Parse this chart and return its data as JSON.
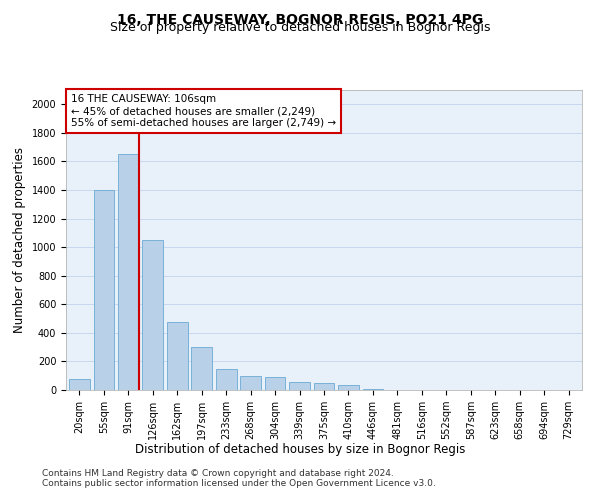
{
  "title": "16, THE CAUSEWAY, BOGNOR REGIS, PO21 4PG",
  "subtitle": "Size of property relative to detached houses in Bognor Regis",
  "xlabel": "Distribution of detached houses by size in Bognor Regis",
  "ylabel": "Number of detached properties",
  "categories": [
    "20sqm",
    "55sqm",
    "91sqm",
    "126sqm",
    "162sqm",
    "197sqm",
    "233sqm",
    "268sqm",
    "304sqm",
    "339sqm",
    "375sqm",
    "410sqm",
    "446sqm",
    "481sqm",
    "516sqm",
    "552sqm",
    "587sqm",
    "623sqm",
    "658sqm",
    "694sqm",
    "729sqm"
  ],
  "values": [
    80,
    1400,
    1650,
    1050,
    475,
    300,
    150,
    100,
    90,
    55,
    50,
    35,
    5,
    0,
    0,
    0,
    0,
    0,
    0,
    0,
    0
  ],
  "bar_color": "#b8d0e8",
  "bar_edge_color": "#6aaad4",
  "bar_width": 0.85,
  "vline_x": 2.45,
  "vline_color": "#cc0000",
  "annotation_text": "16 THE CAUSEWAY: 106sqm\n← 45% of detached houses are smaller (2,249)\n55% of semi-detached houses are larger (2,749) →",
  "annotation_box_color": "#ffffff",
  "annotation_box_edge": "#cc0000",
  "ylim": [
    0,
    2100
  ],
  "yticks": [
    0,
    200,
    400,
    600,
    800,
    1000,
    1200,
    1400,
    1600,
    1800,
    2000
  ],
  "grid_color": "#c8d8ee",
  "bg_color": "#e8f0fa",
  "footer1": "Contains HM Land Registry data © Crown copyright and database right 2024.",
  "footer2": "Contains public sector information licensed under the Open Government Licence v3.0.",
  "title_fontsize": 10,
  "subtitle_fontsize": 9,
  "axis_label_fontsize": 8.5,
  "tick_fontsize": 7,
  "annotation_fontsize": 7.5,
  "footer_fontsize": 6.5
}
